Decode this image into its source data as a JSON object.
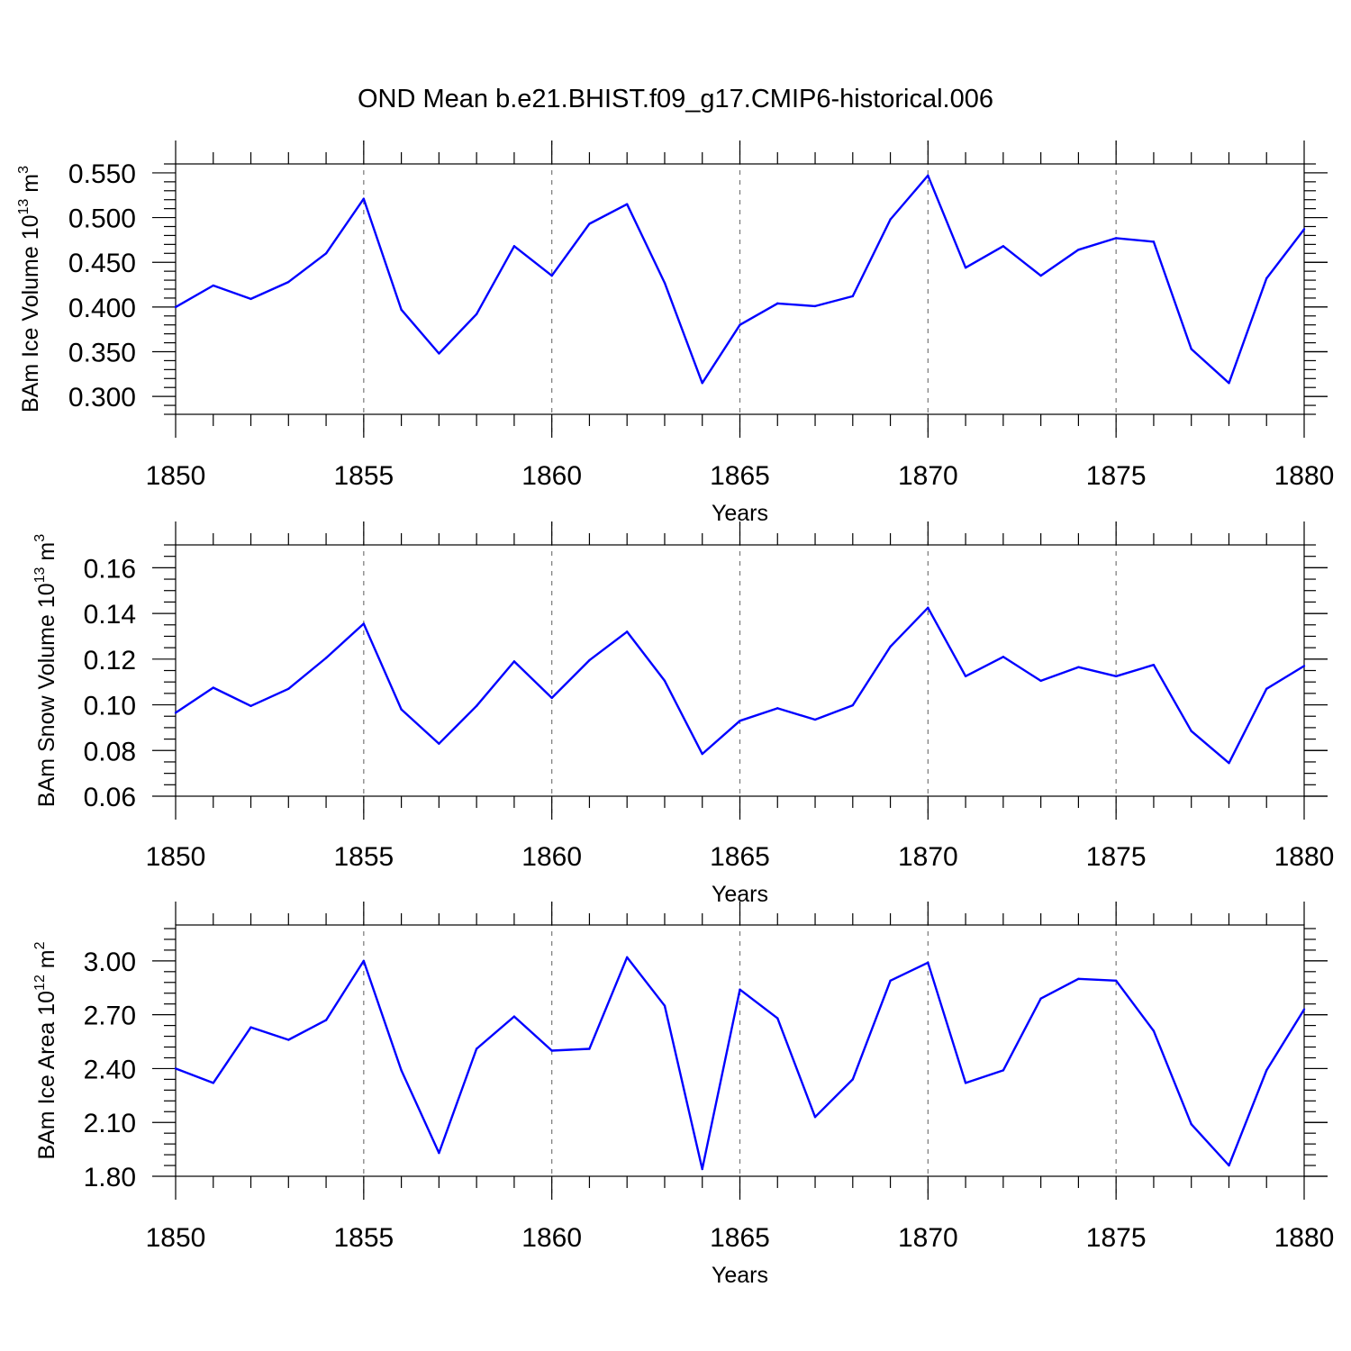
{
  "title": "OND Mean b.e21.BHIST.f09_g17.CMIP6-historical.006",
  "chart_data": [
    {
      "type": "line",
      "title": "OND Mean b.e21.BHIST.f09_g17.CMIP6-historical.006",
      "xlabel": "Years",
      "ylabel": "BAm Ice Volume 10",
      "ylabel_exp": "13",
      "ylabel_unit": "m",
      "ylabel_unit_exp": "3",
      "xlim": [
        1850,
        1880
      ],
      "ylim": [
        0.28,
        0.56
      ],
      "yticks": [
        0.3,
        0.35,
        0.4,
        0.45,
        0.5,
        0.55
      ],
      "ytick_labels": [
        "0.300",
        "0.350",
        "0.400",
        "0.450",
        "0.500",
        "0.550"
      ],
      "yminor_step": 0.01,
      "xticks": [
        1850,
        1855,
        1860,
        1865,
        1870,
        1875,
        1880
      ],
      "xtick_labels": [
        "1850",
        "1855",
        "1860",
        "1865",
        "1870",
        "1875",
        "1880"
      ],
      "grid": "vertical dashed at major x ticks",
      "color": "#0000ff",
      "x": [
        1850,
        1851,
        1852,
        1853,
        1854,
        1855,
        1856,
        1857,
        1858,
        1859,
        1860,
        1861,
        1862,
        1863,
        1864,
        1865,
        1866,
        1867,
        1868,
        1869,
        1870,
        1871,
        1872,
        1873,
        1874,
        1875,
        1876,
        1877,
        1878,
        1879,
        1880
      ],
      "values": [
        0.4,
        0.424,
        0.409,
        0.428,
        0.46,
        0.521,
        0.397,
        0.348,
        0.392,
        0.468,
        0.435,
        0.493,
        0.515,
        0.427,
        0.315,
        0.38,
        0.404,
        0.401,
        0.412,
        0.498,
        0.547,
        0.444,
        0.468,
        0.435,
        0.464,
        0.477,
        0.473,
        0.353,
        0.315,
        0.432,
        0.487
      ]
    },
    {
      "type": "line",
      "xlabel": "Years",
      "ylabel": "BAm Snow Volume 10",
      "ylabel_exp": "13",
      "ylabel_unit": "m",
      "ylabel_unit_exp": "3",
      "xlim": [
        1850,
        1880
      ],
      "ylim": [
        0.06,
        0.17
      ],
      "yticks": [
        0.06,
        0.08,
        0.1,
        0.12,
        0.14,
        0.16
      ],
      "ytick_labels": [
        "0.06",
        "0.08",
        "0.10",
        "0.12",
        "0.14",
        "0.16"
      ],
      "yminor_step": 0.005,
      "xticks": [
        1850,
        1855,
        1860,
        1865,
        1870,
        1875,
        1880
      ],
      "xtick_labels": [
        "1850",
        "1855",
        "1860",
        "1865",
        "1870",
        "1875",
        "1880"
      ],
      "grid": "vertical dashed at major x ticks",
      "color": "#0000ff",
      "x": [
        1850,
        1851,
        1852,
        1853,
        1854,
        1855,
        1856,
        1857,
        1858,
        1859,
        1860,
        1861,
        1862,
        1863,
        1864,
        1865,
        1866,
        1867,
        1868,
        1869,
        1870,
        1871,
        1872,
        1873,
        1874,
        1875,
        1876,
        1877,
        1878,
        1879,
        1880
      ],
      "values": [
        0.0965,
        0.1075,
        0.0995,
        0.107,
        0.1205,
        0.1355,
        0.098,
        0.083,
        0.0995,
        0.119,
        0.103,
        0.1195,
        0.132,
        0.1105,
        0.0785,
        0.093,
        0.0985,
        0.0935,
        0.0998,
        0.1255,
        0.1425,
        0.1125,
        0.121,
        0.1105,
        0.1165,
        0.1125,
        0.1175,
        0.0885,
        0.0745,
        0.107,
        0.117
      ]
    },
    {
      "type": "line",
      "xlabel": "Years",
      "ylabel": "BAm Ice Area 10",
      "ylabel_exp": "12",
      "ylabel_unit": "m",
      "ylabel_unit_exp": "2",
      "xlim": [
        1850,
        1880
      ],
      "ylim": [
        1.8,
        3.2
      ],
      "yticks": [
        1.8,
        2.1,
        2.4,
        2.7,
        3.0
      ],
      "ytick_labels": [
        "1.80",
        "2.10",
        "2.40",
        "2.70",
        "3.00"
      ],
      "yminor_step": 0.06,
      "xticks": [
        1850,
        1855,
        1860,
        1865,
        1870,
        1875,
        1880
      ],
      "xtick_labels": [
        "1850",
        "1855",
        "1860",
        "1865",
        "1870",
        "1875",
        "1880"
      ],
      "grid": "vertical dashed at major x ticks",
      "color": "#0000ff",
      "x": [
        1850,
        1851,
        1852,
        1853,
        1854,
        1855,
        1856,
        1857,
        1858,
        1859,
        1860,
        1861,
        1862,
        1863,
        1864,
        1865,
        1866,
        1867,
        1868,
        1869,
        1870,
        1871,
        1872,
        1873,
        1874,
        1875,
        1876,
        1877,
        1878,
        1879,
        1880
      ],
      "values": [
        2.4,
        2.32,
        2.63,
        2.56,
        2.67,
        3.0,
        2.39,
        1.93,
        2.51,
        2.69,
        2.5,
        2.51,
        3.02,
        2.75,
        1.84,
        2.84,
        2.68,
        2.13,
        2.34,
        2.89,
        2.99,
        2.32,
        2.39,
        2.79,
        2.9,
        2.89,
        2.61,
        2.09,
        1.86,
        2.39,
        2.73
      ]
    }
  ]
}
